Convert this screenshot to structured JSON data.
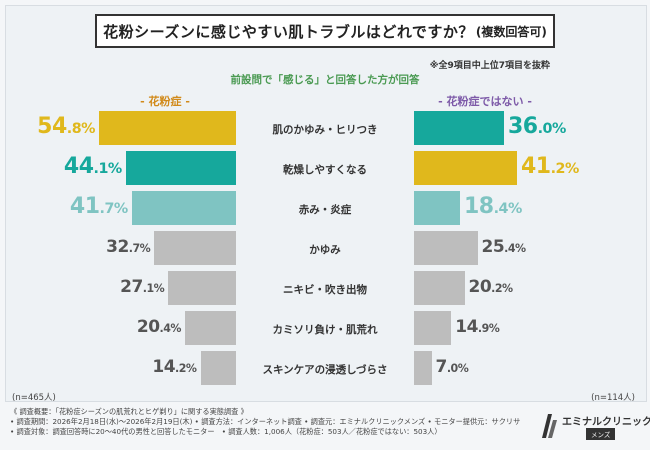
{
  "chart_data": {
    "type": "bar",
    "orientation": "horizontal-butterfly",
    "title": "花粉シーズンに感じやすい肌トラブルはどれですか？",
    "title_suffix": "(複数回答可)",
    "note": "※全9項目中上位7項目を抜粋",
    "subtitle": "前設問で「感じる」と回答した方が回答",
    "categories": [
      "肌のかゆみ・ヒリつき",
      "乾燥しやすくなる",
      "赤み・炎症",
      "かゆみ",
      "ニキビ・吹き出物",
      "カミソリ負け・肌荒れ",
      "スキンケアの浸透しづらさ"
    ],
    "series": [
      {
        "name": "- 花粉症 -",
        "n_label": "(n=465人)",
        "values": [
          54.8,
          44.1,
          41.7,
          32.7,
          27.1,
          20.4,
          14.2
        ]
      },
      {
        "name": "- 花粉症ではない -",
        "n_label": "(n=114人)",
        "values": [
          36.0,
          41.2,
          18.4,
          25.4,
          20.2,
          14.9,
          7.0
        ]
      }
    ],
    "unit": "%",
    "colors": {
      "left": [
        "#e0b81c",
        "#16a89c",
        "#7fc4c2",
        "#bdbdbd",
        "#bdbdbd",
        "#bdbdbd",
        "#bdbdbd"
      ],
      "right": [
        "#16a89c",
        "#e0b81c",
        "#7fc4c2",
        "#bdbdbd",
        "#bdbdbd",
        "#bdbdbd",
        "#bdbdbd"
      ],
      "label_left": [
        "#e0b81c",
        "#16a89c",
        "#7fc4c2",
        "#555555",
        "#555555",
        "#555555",
        "#555555"
      ],
      "label_right": [
        "#16a89c",
        "#e0b81c",
        "#7fc4c2",
        "#555555",
        "#555555",
        "#555555",
        "#555555"
      ]
    },
    "xlim": [
      0,
      60
    ]
  },
  "footer": {
    "line1": "《 調査概要：「花粉症シーズンの肌荒れとヒゲ剃り」に関する実態調査 》",
    "line2": "• 調査期間：2026年2月18日(水)～2026年2月19日(木) • 調査方法：インターネット調査 • 調査元：エミナルクリニックメンズ • モニター提供元：サクリサ",
    "line3": "• 調査対象：調査回答時に20～40代の男性と回答したモニター　• 調査人数：1,006人（花粉症：503人／花粉症ではない：503人）"
  },
  "logo": {
    "name": "エミナルクリニック",
    "sub": "メンズ"
  }
}
